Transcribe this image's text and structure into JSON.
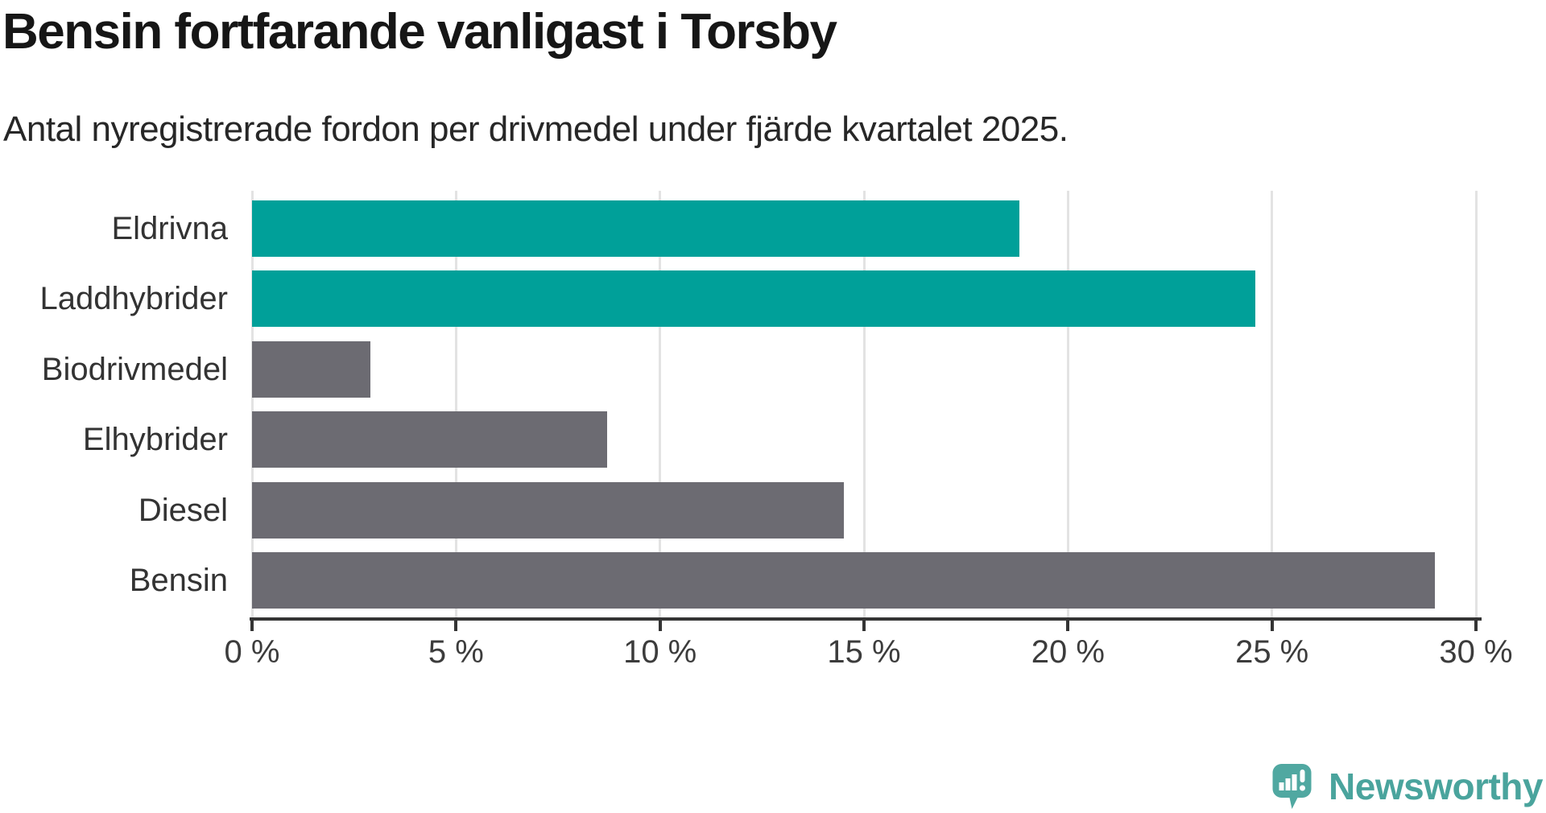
{
  "header": {
    "title": "Bensin fortfarande vanligast i Torsby",
    "subtitle": "Antal nyregistrerade fordon per drivmedel under fjärde kvartalet 2025."
  },
  "chart_data": {
    "type": "bar",
    "orientation": "horizontal",
    "title": "Bensin fortfarande vanligast i Torsby",
    "subtitle": "Antal nyregistrerade fordon per drivmedel under fjärde kvartalet 2025.",
    "categories": [
      "Eldrivna",
      "Laddhybrider",
      "Biodrivmedel",
      "Elhybrider",
      "Diesel",
      "Bensin"
    ],
    "values": [
      18.8,
      24.6,
      2.9,
      8.7,
      14.5,
      29.0
    ],
    "unit": "%",
    "xlabel": "",
    "ylabel": "",
    "xlim": [
      0,
      30
    ],
    "xticks": [
      0,
      5,
      10,
      15,
      20,
      25,
      30
    ],
    "xtick_labels": [
      "0 %",
      "5 %",
      "10 %",
      "15 %",
      "20 %",
      "25 %",
      "30 %"
    ],
    "grid": "vertical",
    "gridline_color": "#e3e3e3",
    "axis_color": "#343434",
    "bar_colors": [
      "#00A099",
      "#00A099",
      "#6C6B72",
      "#6C6B72",
      "#6C6B72",
      "#6C6B72"
    ],
    "highlight_color": "#00A099",
    "default_color": "#6C6B72",
    "legend": "none"
  },
  "footer": {
    "brand": "Newsworthy",
    "brand_text_color": "#4AA49D",
    "brand_icon_color": "#50A8A1"
  }
}
